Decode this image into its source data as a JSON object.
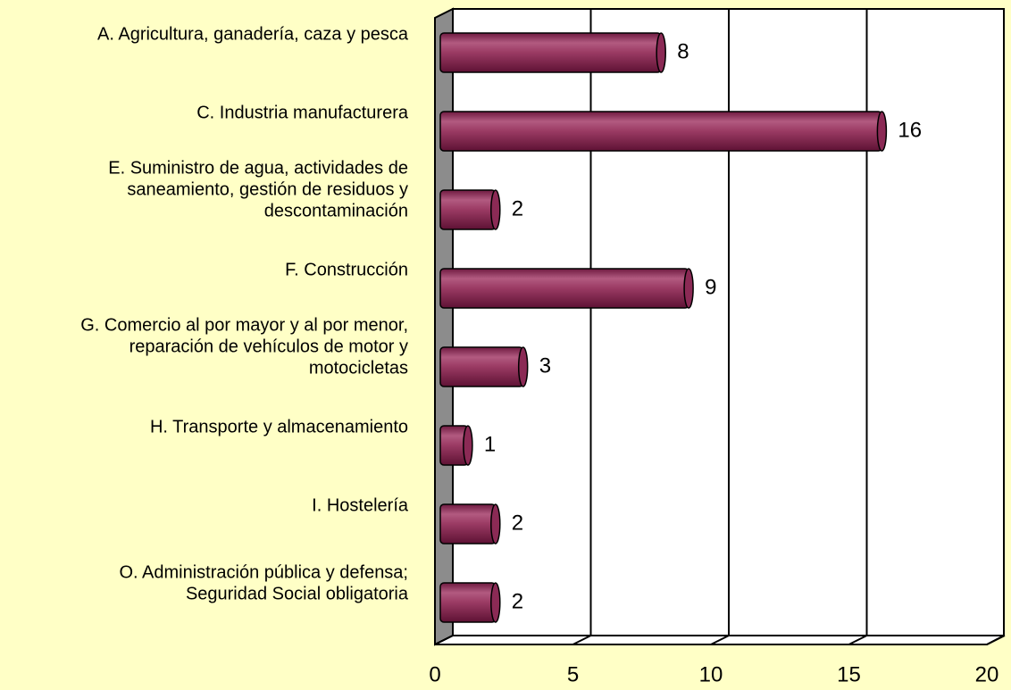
{
  "chart_data": {
    "type": "bar",
    "orientation": "horizontal",
    "categories": [
      [
        "A. Agricultura, ganadería, caza y pesca"
      ],
      [
        "C. Industria manufacturera"
      ],
      [
        "E. Suministro de agua, actividades de",
        "saneamiento, gestión de residuos y",
        "descontaminación"
      ],
      [
        "F. Construcción"
      ],
      [
        "G. Comercio al por mayor y al por menor,",
        "reparación de vehículos de motor y",
        "motocicletas"
      ],
      [
        "H. Transporte y almacenamiento"
      ],
      [
        "I. Hostelería"
      ],
      [
        "O. Administración pública y defensa;",
        "Seguridad Social obligatoria"
      ]
    ],
    "values": [
      8,
      16,
      2,
      9,
      3,
      1,
      2,
      2
    ],
    "color": "#8b2a55",
    "xlim": [
      0,
      20
    ],
    "xticks": [
      0,
      5,
      10,
      15,
      20
    ],
    "grid": true
  }
}
